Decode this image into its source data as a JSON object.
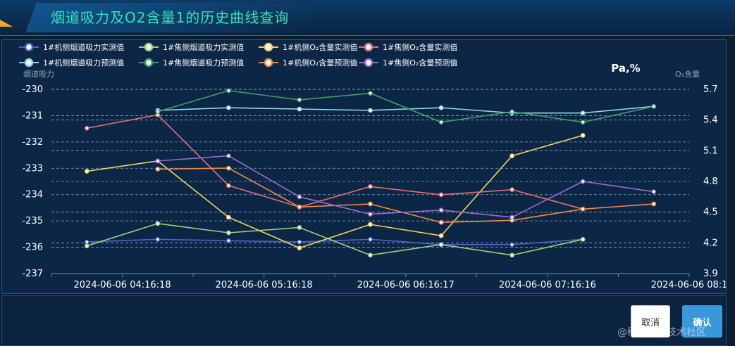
{
  "window": {
    "title": "烟道吸力及O2含量1的历史曲线查询",
    "watermark": "@稀土掘金技术社区"
  },
  "buttons": {
    "cancel": "取消",
    "confirm": "确认"
  },
  "chart_data": {
    "type": "line",
    "unit_label": "Pa,%",
    "y_left": {
      "label": "烟道吸力",
      "min": -237,
      "max": -230,
      "ticks": [
        -230,
        -231,
        -232,
        -233,
        -234,
        -235,
        -236,
        -237
      ]
    },
    "y_right": {
      "label": "O₂含量",
      "min": 3.9,
      "max": 5.7,
      "ticks": [
        "5.7",
        "5.4",
        "5.1",
        "4.8",
        "4.5",
        "4.2",
        "3.9"
      ]
    },
    "x_labels": [
      "2024-06-06 04:16:18",
      "2024-06-06 05:16:18",
      "2024-06-06 06:16:17",
      "2024-06-06 07:16:16",
      "2024-06-06 08:1"
    ],
    "series": [
      {
        "name": "1#机侧烟道吸力实测值",
        "color": "#4f64c8",
        "axis": "left",
        "values": [
          -235.8,
          -235.7,
          -235.75,
          -235.8,
          -235.7,
          -235.9,
          -235.9,
          -235.7
        ]
      },
      {
        "name": "1#焦侧烟道吸力实测值",
        "color": "#9bd27a",
        "axis": "left",
        "values": [
          -235.95,
          -235.1,
          -235.45,
          -235.25,
          -236.3,
          -235.9,
          -236.3,
          -235.7
        ]
      },
      {
        "name": "1#机侧O₂含量实测值",
        "color": "#f5d160",
        "axis": "right",
        "values": [
          4.9,
          5.0,
          4.45,
          4.15,
          4.38,
          4.27,
          5.05,
          5.25
        ]
      },
      {
        "name": "1#焦侧O₂含量实测值",
        "color": "#e86f6f",
        "axis": "right",
        "values": [
          5.32,
          5.45,
          4.76,
          4.55,
          4.75,
          4.67,
          4.72,
          4.53
        ]
      },
      {
        "name": "1#机侧烟道吸力预测值",
        "color": "#8fd3e8",
        "axis": "left",
        "values": [
          null,
          -230.8,
          -230.7,
          -230.75,
          -230.8,
          -230.7,
          -230.9,
          -230.9,
          -230.65
        ]
      },
      {
        "name": "1#焦侧烟道吸力预测值",
        "color": "#3f9e6a",
        "axis": "left",
        "values": [
          null,
          -230.85,
          -230.05,
          -230.4,
          -230.15,
          -231.25,
          -230.85,
          -231.25,
          -230.65
        ]
      },
      {
        "name": "1#机侧O₂含量预测值",
        "color": "#f08a4b",
        "axis": "right",
        "values": [
          null,
          4.92,
          4.93,
          4.55,
          4.58,
          4.4,
          4.42,
          4.53,
          4.58
        ]
      },
      {
        "name": "1#焦侧O₂含量预测值",
        "color": "#9a6ad4",
        "axis": "right",
        "values": [
          null,
          5.0,
          5.05,
          4.65,
          4.48,
          4.52,
          4.45,
          4.8,
          4.7
        ]
      }
    ]
  }
}
